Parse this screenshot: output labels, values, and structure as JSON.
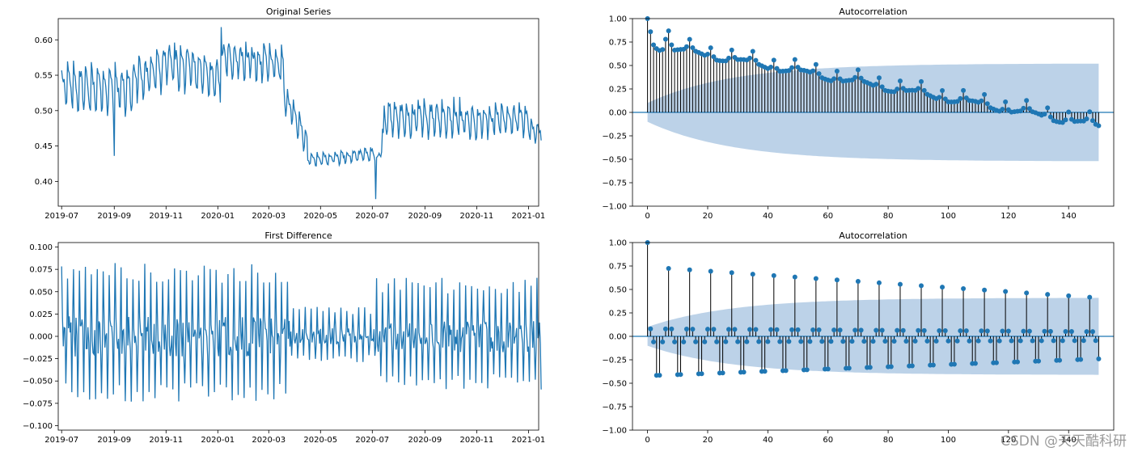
{
  "colors": {
    "line": "#1f77b4",
    "band": "#bcd2e8",
    "axis": "#000000",
    "stem": "#000000"
  },
  "watermark": "CSDN @天天酷科研",
  "chart_data": [
    {
      "id": "orig",
      "type": "line",
      "title": "Original Series",
      "xlabel": "",
      "ylabel": "",
      "xlim": [
        0,
        566
      ],
      "ylim": [
        0.365,
        0.63
      ],
      "x_ticks": [
        {
          "label": "2019-07",
          "day": 4
        },
        {
          "label": "2019-09",
          "day": 66
        },
        {
          "label": "2019-11",
          "day": 127
        },
        {
          "label": "2020-01",
          "day": 188
        },
        {
          "label": "2020-03",
          "day": 248
        },
        {
          "label": "2020-05",
          "day": 309
        },
        {
          "label": "2020-07",
          "day": 370
        },
        {
          "label": "2020-09",
          "day": 432
        },
        {
          "label": "2020-11",
          "day": 493
        },
        {
          "label": "2021-01",
          "day": 554
        }
      ],
      "y_ticks": [
        0.4,
        0.45,
        0.5,
        0.55,
        0.6
      ],
      "y_tick_labels": [
        "0.40",
        "0.45",
        "0.50",
        "0.55",
        "0.60"
      ],
      "segments": [
        {
          "d0": 0,
          "d1": 85,
          "base0": 0.535,
          "base1": 0.53,
          "amp": 0.045
        },
        {
          "d0": 85,
          "d1": 120,
          "base0": 0.545,
          "base1": 0.56,
          "amp": 0.04
        },
        {
          "d0": 120,
          "d1": 190,
          "base0": 0.57,
          "base1": 0.545,
          "amp": 0.04
        },
        {
          "d0": 190,
          "d1": 262,
          "base0": 0.575,
          "base1": 0.565,
          "amp": 0.035
        },
        {
          "d0": 262,
          "d1": 290,
          "base0": 0.52,
          "base1": 0.455,
          "amp": 0.025
        },
        {
          "d0": 290,
          "d1": 370,
          "base0": 0.43,
          "base1": 0.44,
          "amp": 0.012
        },
        {
          "d0": 370,
          "d1": 380,
          "base0": 0.42,
          "base1": 0.47,
          "amp": 0.02
        },
        {
          "d0": 380,
          "d1": 470,
          "base0": 0.49,
          "base1": 0.49,
          "amp": 0.035
        },
        {
          "d0": 470,
          "d1": 550,
          "base0": 0.485,
          "base1": 0.49,
          "amp": 0.03
        },
        {
          "d0": 550,
          "d1": 566,
          "base0": 0.475,
          "base1": 0.47,
          "amp": 0.02
        }
      ]
    },
    {
      "id": "acf1",
      "type": "stem",
      "title": "Autocorrelation",
      "xlim": [
        -5,
        155
      ],
      "ylim": [
        -1.0,
        1.0
      ],
      "x_ticks": [
        0,
        20,
        40,
        60,
        80,
        100,
        120,
        140
      ],
      "y_ticks": [
        -1.0,
        -0.75,
        -0.5,
        -0.25,
        0.0,
        0.25,
        0.5,
        0.75,
        1.0
      ],
      "y_tick_labels": [
        "−1.00",
        "−0.75",
        "−0.50",
        "−0.25",
        "0.00",
        "0.25",
        "0.50",
        "0.75",
        "1.00"
      ],
      "nlags": 150,
      "confidence_start": 0.1,
      "confidence_end": 0.52,
      "trend_start": 0.72,
      "trend_slope": -0.0058,
      "weekly_bump": 0.11,
      "values_first": [
        1.0,
        0.86,
        0.72,
        0.68,
        0.66,
        0.67,
        0.78,
        0.87,
        0.72
      ]
    },
    {
      "id": "diff",
      "type": "line",
      "title": "First Difference",
      "xlim": [
        0,
        566
      ],
      "ylim": [
        -0.105,
        0.105
      ],
      "x_ticks": [
        {
          "label": "2019-07",
          "day": 4
        },
        {
          "label": "2019-09",
          "day": 66
        },
        {
          "label": "2019-11",
          "day": 127
        },
        {
          "label": "2020-01",
          "day": 188
        },
        {
          "label": "2020-03",
          "day": 248
        },
        {
          "label": "2020-05",
          "day": 309
        },
        {
          "label": "2020-07",
          "day": 370
        },
        {
          "label": "2020-09",
          "day": 432
        },
        {
          "label": "2020-11",
          "day": 493
        },
        {
          "label": "2021-01",
          "day": 554
        }
      ],
      "y_ticks": [
        -0.1,
        -0.075,
        -0.05,
        -0.025,
        0.0,
        0.025,
        0.05,
        0.075,
        0.1
      ],
      "y_tick_labels": [
        "−0.100",
        "−0.075",
        "−0.050",
        "−0.025",
        "0.000",
        "0.025",
        "0.050",
        "0.075",
        "0.100"
      ],
      "amp_profile": [
        {
          "d0": 0,
          "d1": 270,
          "amp": 0.075
        },
        {
          "d0": 270,
          "d1": 370,
          "amp": 0.03
        },
        {
          "d0": 370,
          "d1": 566,
          "amp": 0.06
        }
      ]
    },
    {
      "id": "acf2",
      "type": "stem",
      "title": "Autocorrelation",
      "xlim": [
        -5,
        155
      ],
      "ylim": [
        -1.0,
        1.0
      ],
      "x_ticks": [
        0,
        20,
        40,
        60,
        80,
        100,
        120,
        140
      ],
      "y_ticks": [
        -1.0,
        -0.75,
        -0.5,
        -0.25,
        0.0,
        0.25,
        0.5,
        0.75,
        1.0
      ],
      "y_tick_labels": [
        "−1.00",
        "−0.75",
        "−0.50",
        "−0.25",
        "0.00",
        "0.25",
        "0.50",
        "0.75",
        "1.00"
      ],
      "nlags": 150,
      "confidence_start": 0.1,
      "confidence_end": 0.41,
      "peak_start": 0.74,
      "peak_slope": -0.0022,
      "trough_start": -0.42,
      "trough_slope": 0.0012
    }
  ]
}
